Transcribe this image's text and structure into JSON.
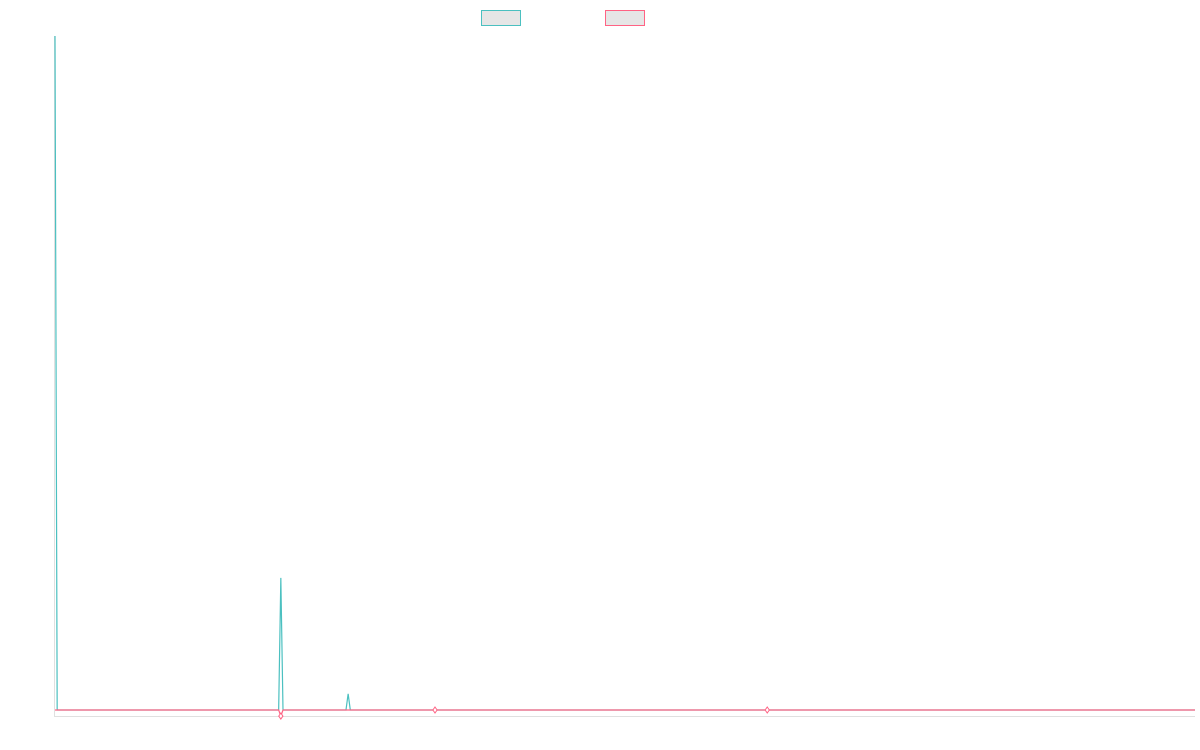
{
  "chart_data": {
    "type": "line",
    "x_count": 526,
    "ylim": [
      -0.012,
      1.0
    ],
    "grid": false,
    "legend_position": "top-center",
    "series": [
      {
        "color": "#4bc0c0",
        "fill": "#e6e6e6",
        "points": [
          [
            0,
            1.0
          ],
          [
            1,
            0.0
          ],
          [
            103,
            0.0
          ],
          [
            104,
            0.196
          ],
          [
            105,
            0.0
          ],
          [
            134,
            0.0
          ],
          [
            135,
            0.024
          ],
          [
            136,
            0.0
          ],
          [
            525,
            0.0
          ]
        ]
      },
      {
        "color": "#ff6384",
        "fill": "#e6e6e6",
        "points": [
          [
            0,
            0.0
          ],
          [
            103,
            0.0
          ],
          [
            104,
            -0.009
          ],
          [
            105,
            0.0
          ],
          [
            525,
            0.0
          ]
        ],
        "markers": [
          [
            104,
            -0.009
          ],
          [
            175,
            0.0
          ],
          [
            328,
            0.0
          ]
        ]
      }
    ]
  }
}
